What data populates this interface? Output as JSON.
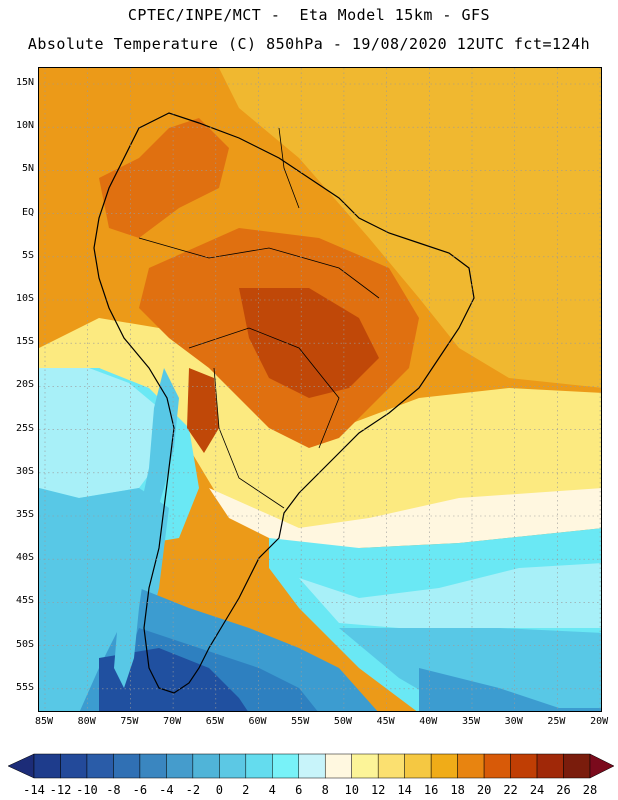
{
  "header": {
    "line1": "CPTEC/INPE/MCT -  Eta Model 15km - GFS",
    "line2": "Absolute Temperature (C) 850hPa - 19/08/2020 12UTC fct=124h"
  },
  "map": {
    "lat_labels": [
      "15N",
      "10N",
      "5N",
      "EQ",
      "5S",
      "10S",
      "15S",
      "20S",
      "25S",
      "30S",
      "35S",
      "40S",
      "45S",
      "50S",
      "55S"
    ],
    "lon_labels": [
      "85W",
      "80W",
      "75W",
      "70W",
      "65W",
      "60W",
      "55W",
      "50W",
      "45W",
      "40W",
      "35W",
      "30W",
      "25W",
      "20W"
    ],
    "field_colors": {
      "very_warm": "#c04808",
      "warm": "#e07010",
      "orange": "#ec9a18",
      "gold": "#f0b830",
      "yellow": "#fcea80",
      "cream": "#fff7e0",
      "cyan_light": "#a8f0f8",
      "cyan": "#6ae8f4",
      "sky": "#58c8e6",
      "blue_mid": "#3c9cd0",
      "blue": "#2e80c0",
      "blue_deep": "#2050a0"
    }
  },
  "colorbar": {
    "labels": [
      "-14",
      "-12",
      "-10",
      "-8",
      "-6",
      "-4",
      "-2",
      "0",
      "2",
      "4",
      "6",
      "8",
      "10",
      "12",
      "14",
      "16",
      "18",
      "20",
      "22",
      "24",
      "26",
      "28"
    ],
    "colors": [
      "#1e3c8c",
      "#234a9a",
      "#2a5ca8",
      "#3070b4",
      "#3a86c0",
      "#459ccc",
      "#50b4d8",
      "#5cc8e4",
      "#64dcee",
      "#78f2f8",
      "#c8f4fa",
      "#fff8e0",
      "#fcf498",
      "#fbe070",
      "#f5c842",
      "#f0ac18",
      "#e88410",
      "#d85a08",
      "#c03e04",
      "#a02808",
      "#7a1c0c"
    ],
    "min_color": "#1c2c78",
    "max_color": "#7a0a1c"
  }
}
